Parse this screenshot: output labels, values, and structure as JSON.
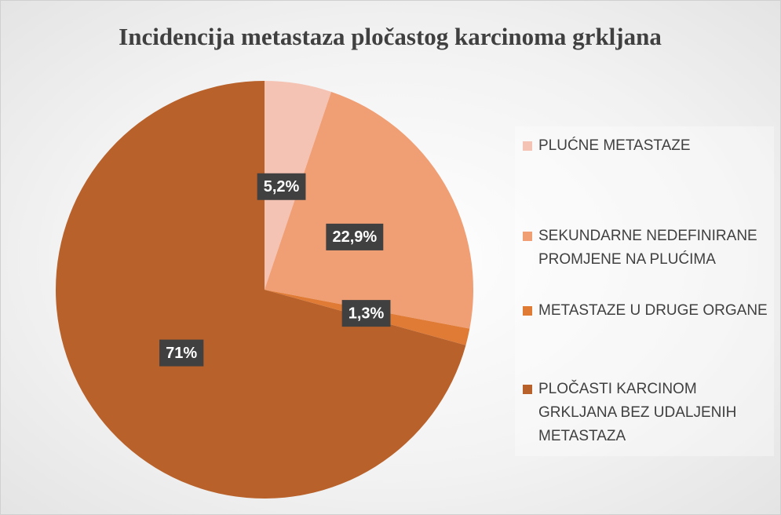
{
  "chart_data": {
    "type": "pie",
    "title": "Incidencija metastaza pločastog karcinoma grkljana",
    "categories": [
      "PLUĆNE METASTAZE",
      "SEKUNDARNE NEDEFINIRANE PROMJENE NA PLUĆIMA",
      "METASTAZE U DRUGE ORGANE",
      "PLOČASTI KARCINOM GRKLJANA BEZ UDALJENIH METASTAZA"
    ],
    "values": [
      5.2,
      22.9,
      1.3,
      71
    ],
    "value_labels": [
      "5,2%",
      "22,9%",
      "1,3%",
      "71%"
    ],
    "colors": [
      "#f5c3b3",
      "#f09e74",
      "#e07b36",
      "#b9612a"
    ],
    "legend": "right"
  }
}
